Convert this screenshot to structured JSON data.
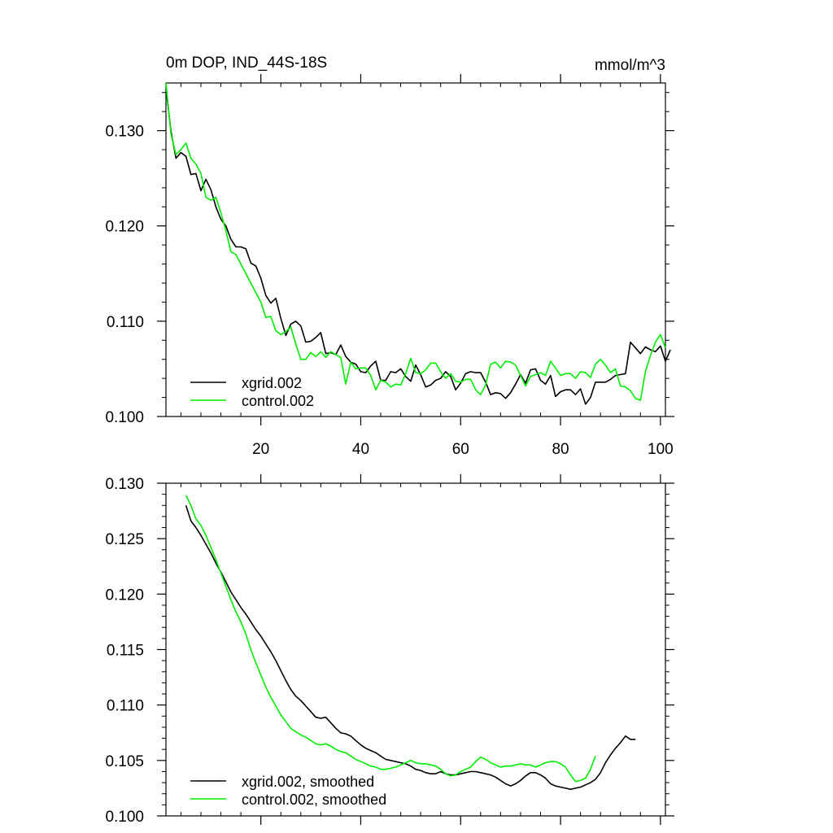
{
  "title_left": "0m DOP, IND_44S-18S",
  "title_right": "mmol/m^3",
  "chart_data": [
    {
      "type": "line",
      "title": "0m DOP, IND_44S-18S",
      "units": "mmol/m^3",
      "xlim": [
        1,
        101
      ],
      "ylim": [
        0.1,
        0.135
      ],
      "x_ticks": [
        20,
        40,
        60,
        80,
        100
      ],
      "x_tick_labels": [
        "20",
        "40",
        "60",
        "80",
        "100"
      ],
      "y_ticks": [
        0.1,
        0.11,
        0.12,
        0.13
      ],
      "y_tick_labels": [
        "0.100",
        "0.110",
        "0.120",
        "0.130"
      ],
      "legend_position": "bottom-left",
      "series": [
        {
          "name": "xgrid.002",
          "color": "#000000",
          "x_start": 1,
          "values": [
            0.1345,
            0.13,
            0.1271,
            0.1277,
            0.1273,
            0.1254,
            0.1255,
            0.1237,
            0.1249,
            0.1238,
            0.122,
            0.1207,
            0.12,
            0.1186,
            0.1178,
            0.1178,
            0.1176,
            0.1161,
            0.1158,
            0.1145,
            0.1127,
            0.1119,
            0.1124,
            0.1103,
            0.1085,
            0.1097,
            0.11,
            0.1095,
            0.1078,
            0.1079,
            0.1083,
            0.1088,
            0.1066,
            0.1067,
            0.1065,
            0.1075,
            0.1063,
            0.1057,
            0.1055,
            0.1047,
            0.1046,
            0.1053,
            0.1058,
            0.1038,
            0.1038,
            0.1047,
            0.1046,
            0.105,
            0.1042,
            0.1037,
            0.1054,
            0.1044,
            0.1031,
            0.1033,
            0.1038,
            0.104,
            0.1047,
            0.1042,
            0.1028,
            0.1035,
            0.1045,
            0.1047,
            0.1046,
            0.1046,
            0.1036,
            0.1023,
            0.1025,
            0.1024,
            0.1019,
            0.1025,
            0.1034,
            0.1044,
            0.1035,
            0.1049,
            0.105,
            0.1038,
            0.1034,
            0.1043,
            0.1021,
            0.1026,
            0.1028,
            0.1028,
            0.1023,
            0.1029,
            0.1013,
            0.102,
            0.1036,
            0.1036,
            0.1036,
            0.1039,
            0.1043,
            0.1044,
            0.1045,
            0.1078,
            0.1072,
            0.1066,
            0.1073,
            0.107,
            0.1068,
            0.1074,
            0.1058,
            0.107
          ]
        },
        {
          "name": "control.002",
          "color": "#00ee00",
          "x_start": 1,
          "values": [
            0.135,
            0.1297,
            0.1275,
            0.128,
            0.1287,
            0.1271,
            0.1265,
            0.1255,
            0.123,
            0.1227,
            0.123,
            0.1214,
            0.1195,
            0.1173,
            0.117,
            0.116,
            0.115,
            0.114,
            0.113,
            0.112,
            0.1104,
            0.1105,
            0.109,
            0.1086,
            0.1089,
            0.1094,
            0.1076,
            0.106,
            0.106,
            0.1067,
            0.1063,
            0.1068,
            0.1062,
            0.1068,
            0.1065,
            0.1062,
            0.1034,
            0.1057,
            0.105,
            0.1051,
            0.1051,
            0.1043,
            0.1028,
            0.1038,
            0.1036,
            0.1031,
            0.1034,
            0.1033,
            0.1045,
            0.1061,
            0.1046,
            0.1045,
            0.1049,
            0.1056,
            0.1056,
            0.1047,
            0.104,
            0.1045,
            0.1037,
            0.1036,
            0.1039,
            0.1039,
            0.1028,
            0.1023,
            0.1033,
            0.1055,
            0.1057,
            0.1051,
            0.1058,
            0.1057,
            0.1054,
            0.1043,
            0.1032,
            0.1042,
            0.1044,
            0.1046,
            0.1043,
            0.1058,
            0.1051,
            0.1043,
            0.1045,
            0.1045,
            0.104,
            0.1047,
            0.1046,
            0.1041,
            0.1055,
            0.106,
            0.1054,
            0.1046,
            0.105,
            0.1032,
            0.1031,
            0.1027,
            0.1019,
            0.1017,
            0.1047,
            0.1064,
            0.1078,
            0.1086,
            0.1072
          ]
        }
      ]
    },
    {
      "type": "line",
      "xlim": [
        1,
        101
      ],
      "ylim": [
        0.1,
        0.13
      ],
      "x_ticks": [
        20,
        40,
        60,
        80,
        100
      ],
      "y_ticks": [
        0.1,
        0.105,
        0.11,
        0.115,
        0.12,
        0.125,
        0.13
      ],
      "y_tick_labels": [
        "0.100",
        "0.105",
        "0.110",
        "0.115",
        "0.120",
        "0.125",
        "0.130"
      ],
      "legend_position": "bottom-left",
      "series": [
        {
          "name": "xgrid.002, smoothed",
          "color": "#000000",
          "x_start": 5,
          "values": [
            0.128,
            0.1266,
            0.126,
            0.1253,
            0.1245,
            0.1237,
            0.1228,
            0.122,
            0.1211,
            0.1202,
            0.1195,
            0.1188,
            0.1182,
            0.1175,
            0.1168,
            0.1162,
            0.1155,
            0.1148,
            0.114,
            0.1131,
            0.1122,
            0.1114,
            0.1108,
            0.1104,
            0.1099,
            0.1094,
            0.1089,
            0.1088,
            0.1089,
            0.1084,
            0.1079,
            0.1075,
            0.1074,
            0.1072,
            0.1068,
            0.1064,
            0.1061,
            0.1059,
            0.1057,
            0.1054,
            0.1051,
            0.105,
            0.1049,
            0.1048,
            0.1047,
            0.1045,
            0.1042,
            0.1041,
            0.1039,
            0.1038,
            0.1038,
            0.104,
            0.1038,
            0.1037,
            0.1037,
            0.1038,
            0.1039,
            0.104,
            0.104,
            0.1039,
            0.1038,
            0.1037,
            0.1035,
            0.1032,
            0.1029,
            0.1027,
            0.1029,
            0.1032,
            0.1036,
            0.1039,
            0.1039,
            0.1037,
            0.1034,
            0.1029,
            0.1027,
            0.1026,
            0.1025,
            0.1024,
            0.1025,
            0.1026,
            0.1028,
            0.103,
            0.1033,
            0.1039,
            0.1048,
            0.1055,
            0.1061,
            0.1066,
            0.1072,
            0.1069,
            0.1069
          ]
        },
        {
          "name": "control.002, smoothed",
          "color": "#00ee00",
          "x_start": 5,
          "values": [
            0.1289,
            0.128,
            0.1268,
            0.1262,
            0.1253,
            0.1242,
            0.1231,
            0.1219,
            0.1207,
            0.1195,
            0.1184,
            0.1175,
            0.1164,
            0.115,
            0.1138,
            0.1127,
            0.1116,
            0.1107,
            0.1099,
            0.1091,
            0.1085,
            0.1079,
            0.1076,
            0.1073,
            0.1071,
            0.1068,
            0.1065,
            0.1064,
            0.1065,
            0.1063,
            0.106,
            0.1058,
            0.1057,
            0.1054,
            0.1051,
            0.1049,
            0.1047,
            0.1045,
            0.1044,
            0.1042,
            0.1042,
            0.1043,
            0.1044,
            0.1046,
            0.1048,
            0.105,
            0.1048,
            0.1047,
            0.1047,
            0.1046,
            0.1045,
            0.1042,
            0.1038,
            0.1036,
            0.1037,
            0.104,
            0.1042,
            0.1044,
            0.1049,
            0.1053,
            0.1051,
            0.1048,
            0.1046,
            0.1044,
            0.1045,
            0.1045,
            0.1046,
            0.1047,
            0.1046,
            0.1046,
            0.1044,
            0.1046,
            0.1048,
            0.1049,
            0.1049,
            0.1047,
            0.1044,
            0.1037,
            0.1031,
            0.1032,
            0.1034,
            0.1042,
            0.1054
          ]
        }
      ]
    }
  ]
}
